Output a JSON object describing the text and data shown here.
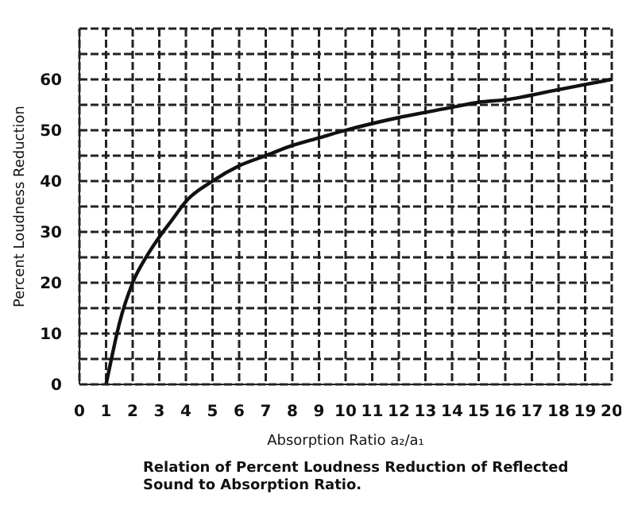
{
  "chart_data": {
    "type": "line",
    "xlabel": "Absorption Ratio a₂/a₁",
    "ylabel": "Percent Loudness Reduction",
    "annotations": [
      "Relation of Percent Loudness Reduction of Reflected Sound to Absorption Ratio."
    ],
    "x": [
      1,
      1.2,
      1.5,
      2,
      2.5,
      3,
      3.5,
      4,
      5,
      6,
      7,
      8,
      9,
      10,
      12,
      14,
      15,
      16,
      18,
      20
    ],
    "series": [
      {
        "color": "#111111",
        "values": [
          0,
          5,
          12,
          20,
          25,
          29,
          32.5,
          36,
          40,
          43,
          45,
          47,
          48.5,
          50,
          52.5,
          54.5,
          55.5,
          56,
          58,
          60
        ]
      }
    ],
    "xlim": [
      0,
      20
    ],
    "xticks": [
      0,
      1,
      2,
      3,
      4,
      5,
      6,
      7,
      8,
      9,
      10,
      11,
      12,
      13,
      14,
      15,
      16,
      17,
      18,
      19,
      20
    ],
    "ylim": [
      0,
      70
    ],
    "yticks": [
      0,
      {
        "value": 5,
        "label": null
      },
      10,
      {
        "value": 15,
        "label": null
      },
      20,
      {
        "value": 25,
        "label": null
      },
      30,
      {
        "value": 35,
        "label": null
      },
      40,
      {
        "value": 45,
        "label": null
      },
      50,
      {
        "value": 55,
        "label": null
      },
      60,
      {
        "value": 65,
        "label": null
      },
      {
        "value": 70,
        "label": null
      }
    ],
    "grid": true,
    "marker": "none",
    "line_style": "solid"
  }
}
